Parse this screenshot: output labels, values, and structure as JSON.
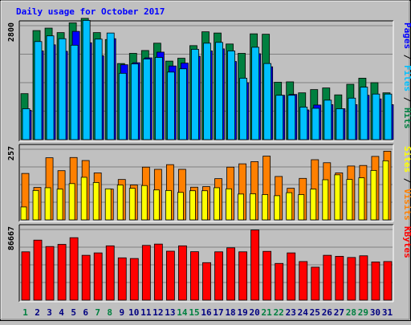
{
  "chart_data": {
    "type": "bar",
    "title": "Daily usage for October 2017",
    "categories": [
      "1",
      "2",
      "3",
      "4",
      "5",
      "6",
      "7",
      "8",
      "9",
      "10",
      "11",
      "12",
      "13",
      "14",
      "15",
      "16",
      "17",
      "18",
      "19",
      "20",
      "21",
      "22",
      "23",
      "24",
      "25",
      "26",
      "27",
      "28",
      "29",
      "30",
      "31"
    ],
    "weekend_days": [
      "1",
      "7",
      "8",
      "14",
      "15",
      "21",
      "22",
      "28",
      "29"
    ],
    "panels": [
      {
        "name": "traffic",
        "ymax_label": "2800",
        "ymax": 2800,
        "ylabel_parts": [
          "Pages",
          "Files",
          "Hits"
        ],
        "series": [
          {
            "name": "Hits",
            "color": "#008040",
            "values": [
              1130,
              2680,
              2740,
              2630,
              2870,
              2980,
              2630,
              2460,
              1870,
              2120,
              2190,
              2370,
              1930,
              2000,
              2310,
              2650,
              2620,
              2350,
              2120,
              2600,
              2590,
              1410,
              1420,
              1150,
              1230,
              1270,
              1100,
              1360,
              1510,
              1400,
              1150
            ]
          },
          {
            "name": "Files",
            "color": "#00c0ff",
            "values": [
              760,
              2410,
              2550,
              2480,
              2320,
              2930,
              2470,
              2620,
              1630,
              1860,
              1980,
              2020,
              1660,
              1740,
              2220,
              2370,
              2390,
              2180,
              1510,
              2270,
              1870,
              1090,
              1090,
              800,
              770,
              970,
              760,
              1020,
              1290,
              1120,
              1120
            ]
          },
          {
            "name": "Pages",
            "color": "#0000ff",
            "values": [
              720,
              2180,
              2330,
              2170,
              2660,
              2380,
              2060,
              2480,
              1840,
              1890,
              2010,
              2150,
              1810,
              1880,
              2050,
              2180,
              2230,
              1920,
              1400,
              2110,
              1790,
              1090,
              1110,
              730,
              850,
              860,
              760,
              860,
              1090,
              1000,
              860
            ]
          }
        ]
      },
      {
        "name": "visitors",
        "ymax_label": "257",
        "ymax": 257,
        "ylabel_parts": [
          "Sites",
          "Visits"
        ],
        "series": [
          {
            "name": "Visits",
            "color": "#ff8000",
            "values": [
              169,
              118,
              226,
              179,
              227,
              216,
              171,
              112,
              147,
              127,
              192,
              184,
              201,
              184,
              119,
              121,
              150,
              192,
              204,
              212,
              232,
              158,
              115,
              151,
              219,
              208,
              171,
              196,
              198,
              231,
              250
            ]
          },
          {
            "name": "Sites",
            "color": "#ffff00",
            "values": [
              47,
              107,
              117,
              112,
              132,
              155,
              136,
              113,
              127,
              115,
              125,
              109,
              107,
              100,
              106,
              106,
              117,
              113,
              94,
              95,
              92,
              88,
              99,
              92,
              112,
              146,
              164,
              147,
              153,
              180,
              215
            ]
          }
        ]
      },
      {
        "name": "kbytes",
        "ymax_label": "86667",
        "ymax": 86667,
        "ylabel_parts": [
          "KBytes"
        ],
        "series": [
          {
            "name": "KBytes",
            "color": "#ff0000",
            "values": [
              59300,
              73650,
              65800,
              68440,
              76640,
              55030,
              57980,
              66650,
              51910,
              51100,
              67180,
              68800,
              60080,
              66650,
              59450,
              46010,
              59300,
              64200,
              59300,
              86090,
              59860,
              45060,
              57980,
              47360,
              40450,
              55030,
              53790,
              52340,
              54420,
              46870,
              47370
            ]
          }
        ]
      }
    ]
  }
}
